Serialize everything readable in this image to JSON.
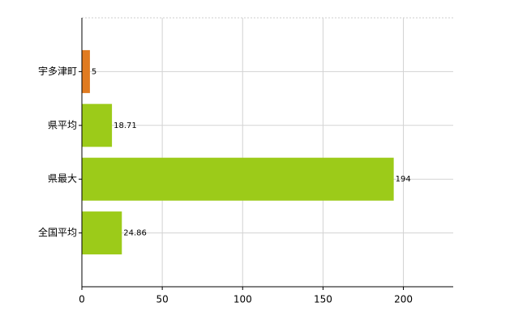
{
  "chart_data": {
    "type": "barh",
    "categories": [
      "宇多津町",
      "県平均",
      "県最大",
      "全国平均"
    ],
    "values": [
      5,
      18.71,
      194,
      24.86
    ],
    "colors": [
      "#e07b20",
      "#9ccb19",
      "#9ccb19",
      "#9ccb19"
    ],
    "xlim": [
      0,
      231
    ],
    "xticks": [
      0,
      50,
      100,
      150,
      200
    ],
    "grid": true
  }
}
